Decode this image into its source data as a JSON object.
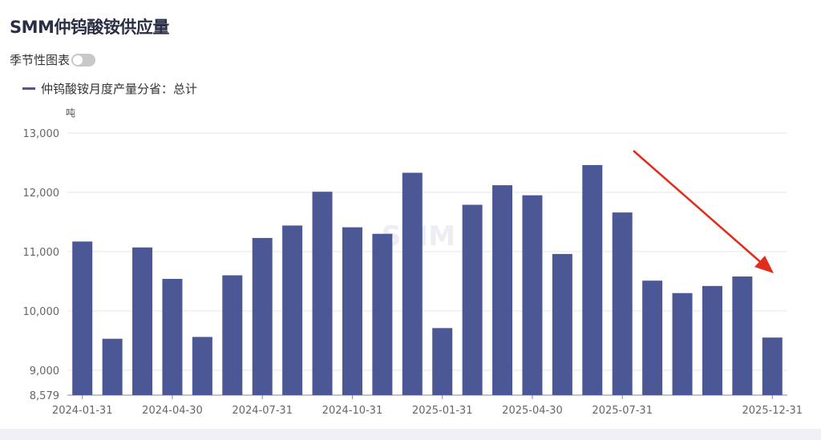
{
  "title": "SMM仲钨酸铵供应量",
  "toggle": {
    "label": "季节性图表",
    "on": false
  },
  "legend": {
    "label": "仲钨酸铵月度产量分省：总计",
    "color": "#4c5796"
  },
  "unit": "吨",
  "watermark": "SMM",
  "colors": {
    "bar": "#4c5796",
    "grid": "#e6e6e6",
    "axis": "#666666",
    "arrow": "#e32c1c"
  },
  "chart_data": {
    "type": "bar",
    "categories": [
      "2024-01-31",
      "2024-02-29",
      "2024-03-31",
      "2024-04-30",
      "2024-05-31",
      "2024-06-30",
      "2024-07-31",
      "2024-08-31",
      "2024-09-30",
      "2024-10-31",
      "2024-11-30",
      "2024-12-31",
      "2025-01-31",
      "2025-02-28",
      "2025-03-31",
      "2025-04-30",
      "2025-05-31",
      "2025-06-30",
      "2025-07-31",
      "2025-08-31",
      "2025-09-30",
      "2025-10-31",
      "2025-11-30",
      "2025-12-31"
    ],
    "x_tick_labels": [
      "2024-01-31",
      "2024-04-30",
      "2024-07-31",
      "2024-10-31",
      "2025-01-31",
      "2025-04-30",
      "2025-07-31",
      "2025-12-31"
    ],
    "series": [
      {
        "name": "仲钨酸铵月度产量分省：总计",
        "values": [
          11170,
          9530,
          11070,
          10540,
          9560,
          10600,
          11230,
          11440,
          12010,
          11410,
          11300,
          12330,
          9710,
          11790,
          12120,
          11950,
          10960,
          12460,
          11660,
          10510,
          10300,
          10420,
          10580,
          9550
        ]
      }
    ],
    "y_ticks": [
      8579,
      9000,
      10000,
      11000,
      12000,
      13000
    ],
    "y_tick_labels": [
      "8,579",
      "9,000",
      "10,000",
      "11,000",
      "12,000",
      "13,000"
    ],
    "ylim": [
      8579,
      13000
    ],
    "grid": true,
    "legend_position": "top-left",
    "annotation": "red arrow pointing down toward 2025-12-31"
  }
}
